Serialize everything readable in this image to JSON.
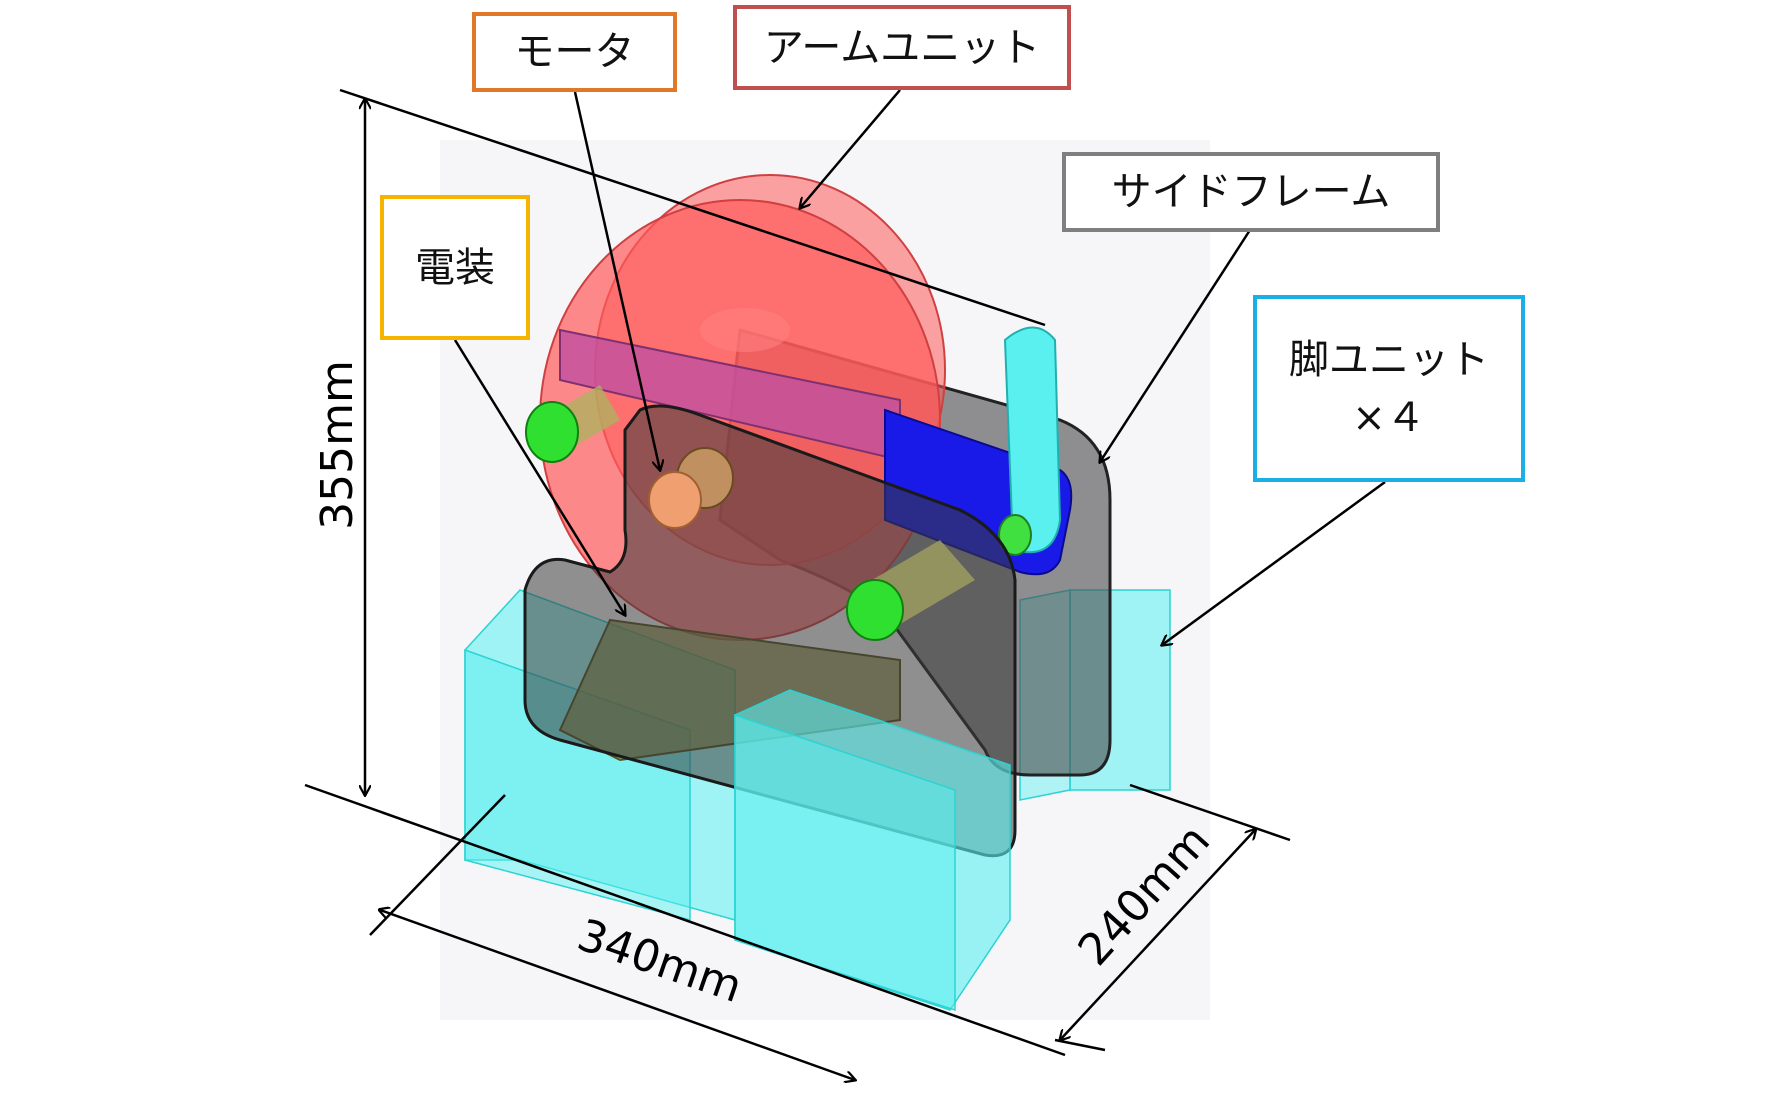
{
  "labels": {
    "motor": "モータ",
    "arm_unit": "アームユニット",
    "side_frame": "サイドフレーム",
    "electrical": "電装",
    "leg_unit_line1": "脚ユニット",
    "leg_unit_line2": "×４"
  },
  "dimensions": {
    "height": "355mm",
    "width": "340mm",
    "depth": "240mm"
  },
  "colors": {
    "motor_border": "#E07828",
    "arm_border": "#C05050",
    "side_frame_border": "#7F7F7F",
    "electrical_border": "#F5B400",
    "leg_border": "#1AB0E6",
    "arm_disc": "#FF5A5A",
    "leg_block": "#5AF0F0",
    "frame": "#555555",
    "link_blue": "#1010E0",
    "link_magenta": "#C050A0",
    "shaft_green": "#20E020",
    "motor_copper": "#F0A070"
  }
}
